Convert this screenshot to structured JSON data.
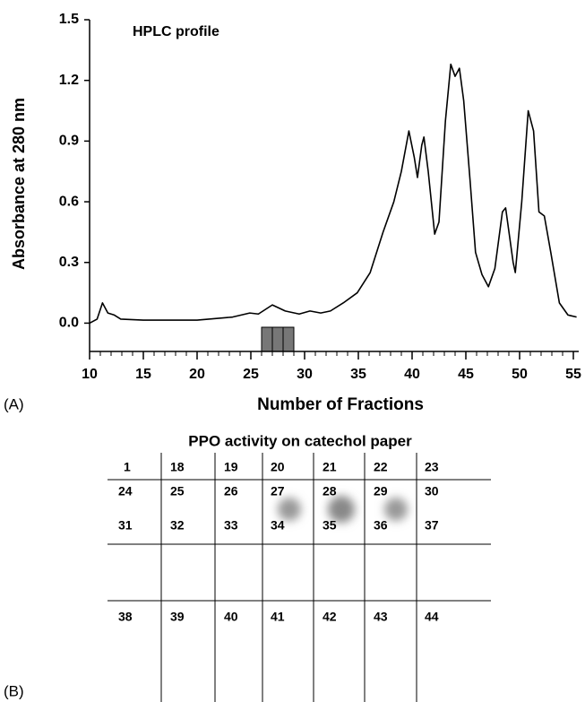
{
  "chart_data": {
    "type": "line",
    "title": "HPLC profile",
    "x_label": "Number of Fractions",
    "y_label": "Absorbance at 280 nm",
    "panel_label": "(A)",
    "x": [
      10,
      10.7,
      11.2,
      11.7,
      12.3,
      12.9,
      15,
      20,
      23.3,
      24.9,
      25.7,
      27,
      28.2,
      29.5,
      30.5,
      31.5,
      32.4,
      33.6,
      34.9,
      36.1,
      37.3,
      38.3,
      39,
      39.7,
      40.2,
      40.5,
      40.9,
      41.1,
      41.5,
      42.1,
      42.5,
      43.1,
      43.6,
      44,
      44.4,
      44.8,
      45.4,
      45.9,
      46.5,
      47.1,
      47.7,
      48.4,
      48.7,
      49.4,
      49.6,
      50.2,
      50.8,
      51.3,
      51.8,
      52.3,
      52.9,
      53.7,
      54.5,
      55.3
    ],
    "series": [
      {
        "color": "#000000",
        "values": [
          0.0,
          0.02,
          0.1,
          0.05,
          0.04,
          0.02,
          0.015,
          0.015,
          0.03,
          0.05,
          0.045,
          0.09,
          0.06,
          0.045,
          0.06,
          0.05,
          0.06,
          0.1,
          0.15,
          0.25,
          0.45,
          0.6,
          0.75,
          0.95,
          0.82,
          0.72,
          0.88,
          0.92,
          0.75,
          0.44,
          0.5,
          1.0,
          1.28,
          1.22,
          1.26,
          1.1,
          0.7,
          0.35,
          0.24,
          0.18,
          0.27,
          0.55,
          0.57,
          0.3,
          0.25,
          0.6,
          1.05,
          0.95,
          0.55,
          0.53,
          0.35,
          0.1,
          0.04,
          0.03
        ]
      }
    ],
    "xlim": [
      10,
      55.5
    ],
    "ylim": [
      -0.14,
      1.5
    ],
    "xticks": [
      10,
      15,
      20,
      25,
      30,
      35,
      40,
      45,
      50,
      55
    ],
    "xminor_step": 1,
    "yticks": [
      {
        "value": 0,
        "label": "0.0"
      },
      0.3,
      0.6,
      0.9,
      1.2,
      1.5
    ],
    "shaded_fractions": [
      26,
      27,
      28,
      29
    ],
    "shade_color": "#777777"
  },
  "panel_b": {
    "panel_label": "(B)",
    "title": "PPO activity on catechol paper",
    "cells": [
      [
        1,
        18,
        19,
        20,
        21,
        22,
        23
      ],
      [
        24,
        25,
        26,
        27,
        28,
        29,
        30
      ],
      [
        31,
        32,
        33,
        34,
        35,
        36,
        37
      ],
      [
        38,
        39,
        40,
        41,
        42,
        43,
        44
      ]
    ]
  }
}
